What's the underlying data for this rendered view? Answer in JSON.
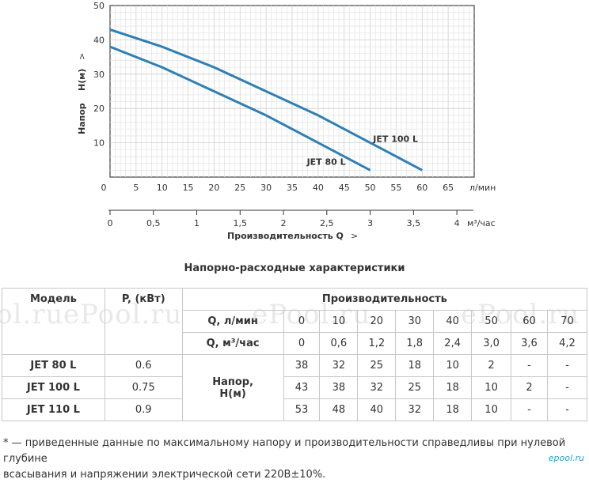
{
  "chart_data": {
    "type": "line",
    "ylabel_word": "Напор",
    "ylabel_unit": "H(м)",
    "ylabel_arrow": ">",
    "y_ticks": [
      "10",
      "20",
      "30",
      "40",
      "50"
    ],
    "ylim": [
      0,
      50
    ],
    "x_top_ticks": [
      "0",
      "5",
      "10",
      "15",
      "20",
      "25",
      "30",
      "35",
      "40",
      "45",
      "50",
      "55",
      "60",
      "65"
    ],
    "x_top_unit": "л/мин",
    "xlim_lmin": [
      0,
      70
    ],
    "x_bottom_ticks": [
      "0",
      "0,5",
      "1",
      "1,5",
      "2",
      "2,5",
      "3",
      "3,5",
      "4"
    ],
    "x_bottom_unit": "м³/час",
    "x_bottom_label": "Производительность Q",
    "x_bottom_arrow": ">",
    "grid": true,
    "series": [
      {
        "name": "JET 100 L",
        "x": [
          0,
          10,
          20,
          30,
          40,
          50,
          60
        ],
        "y": [
          43,
          38,
          32,
          25,
          18,
          10,
          2
        ]
      },
      {
        "name": "JET 80 L",
        "x": [
          0,
          10,
          20,
          30,
          40,
          50
        ],
        "y": [
          38,
          32,
          25,
          18,
          10,
          2
        ]
      }
    ],
    "line_color": "#2f7fb5"
  },
  "section_title": "Напорно-расходные характеристики",
  "watermark_text": "ePool.ru",
  "table": {
    "col_model": "Модель",
    "col_power": "P, (кВт)",
    "col_perf": "Производительность",
    "row_q_lmin_label": "Q, л/мин",
    "row_q_lmin": [
      "0",
      "10",
      "20",
      "30",
      "40",
      "50",
      "60",
      "70"
    ],
    "row_q_m3_label": "Q, м³/час",
    "row_q_m3": [
      "0",
      "0,6",
      "1,2",
      "1,8",
      "2,4",
      "3,0",
      "3,6",
      "4,2"
    ],
    "head_label_1": "Напор,",
    "head_label_2": "Н(м)",
    "models": [
      {
        "name": "JET 80 L",
        "power": "0.6",
        "head": [
          "38",
          "32",
          "25",
          "18",
          "10",
          "2",
          "-",
          "-"
        ]
      },
      {
        "name": "JET 100 L",
        "power": "0.75",
        "head": [
          "43",
          "38",
          "32",
          "25",
          "18",
          "10",
          "2",
          "-"
        ]
      },
      {
        "name": "JET 110 L",
        "power": "0.9",
        "head": [
          "53",
          "48",
          "40",
          "32",
          "18",
          "10",
          "-",
          "-"
        ]
      }
    ]
  },
  "footnote_line1": "* — приведенные данные по максимальному напору и производительности справедливы при нулевой глубине",
  "footnote_line2": "всасывания и напряжении электрической сети 220В±10%.",
  "brand": "epool.ru"
}
